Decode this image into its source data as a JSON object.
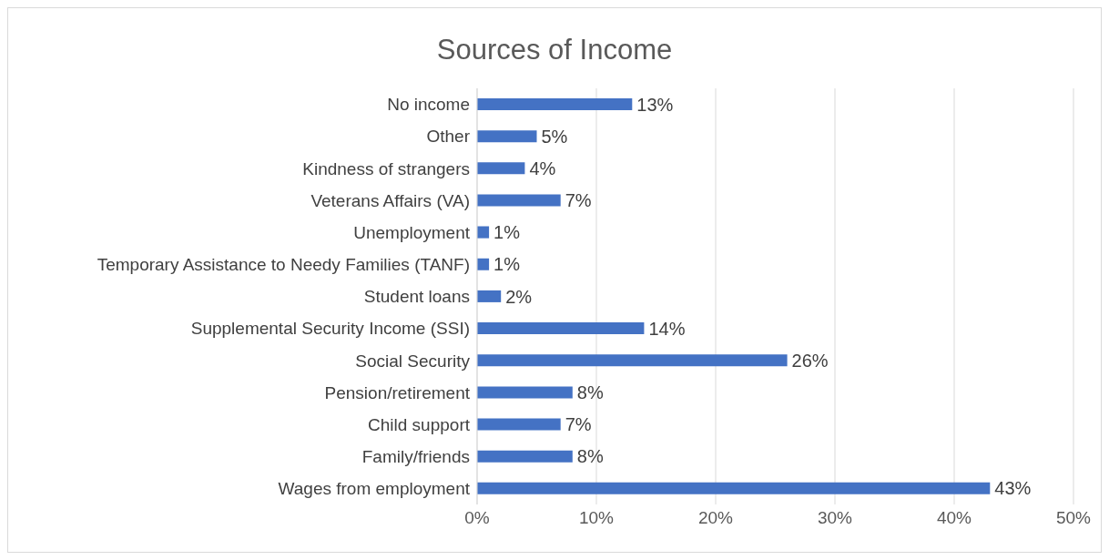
{
  "chart_data": {
    "type": "bar",
    "orientation": "horizontal",
    "title": "Sources of Income",
    "categories": [
      "No income",
      "Other",
      "Kindness of strangers",
      "Veterans Affairs (VA)",
      "Unemployment",
      "Temporary Assistance to Needy Families (TANF)",
      "Student loans",
      "Supplemental Security Income (SSI)",
      "Social Security",
      "Pension/retirement",
      "Child support",
      "Family/friends",
      "Wages from employment"
    ],
    "values": [
      13,
      5,
      4,
      7,
      1,
      1,
      2,
      14,
      26,
      8,
      7,
      8,
      43
    ],
    "value_labels": [
      "13%",
      "5%",
      "4%",
      "7%",
      "1%",
      "1%",
      "2%",
      "14%",
      "26%",
      "8%",
      "7%",
      "8%",
      "43%"
    ],
    "color": "#4472c4",
    "xlim": [
      0,
      50
    ],
    "xticks": [
      {
        "value": 0,
        "label": "0%"
      },
      {
        "value": 10,
        "label": "10%"
      },
      {
        "value": 20,
        "label": "20%"
      },
      {
        "value": 30,
        "label": "30%"
      },
      {
        "value": 40,
        "label": "40%"
      },
      {
        "value": 50,
        "label": "50%"
      }
    ],
    "grid": "x",
    "legend": false
  }
}
